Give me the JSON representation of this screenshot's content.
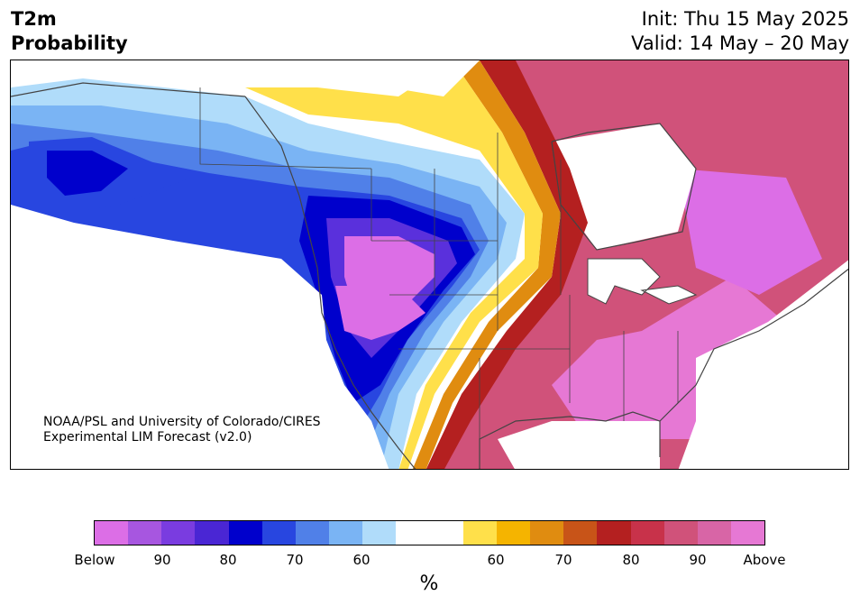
{
  "header": {
    "title_line1": "T2m",
    "title_line2": "Probability",
    "init": "Init: Thu 15 May 2025",
    "valid": "Valid: 14 May – 20 May"
  },
  "credit": {
    "line1": "NOAA/PSL and University of Colorado/CIRES",
    "line2": "Experimental LIM Forecast (v2.0)"
  },
  "colorbar": {
    "colors": [
      "#dc6ee6",
      "#a756e0",
      "#7a3ce0",
      "#4a26d4",
      "#0000cc",
      "#2846e0",
      "#5080e8",
      "#7ab4f4",
      "#b0dcfa",
      "#ffffff",
      "#ffffff",
      "#ffe04a",
      "#f5b400",
      "#e08c10",
      "#c85418",
      "#b42020",
      "#c8324a",
      "#d0527a",
      "#d865a6",
      "#e678d4"
    ],
    "tick_labels": [
      "Below",
      "90",
      "80",
      "70",
      "60",
      "60",
      "70",
      "80",
      "90",
      "Above"
    ],
    "unit_label": "%"
  },
  "map": {
    "region": "North America",
    "cold_side_colors": [
      "#dc6ee6",
      "#9b5ee6",
      "#5a30dc",
      "#1a0ad0",
      "#2846e0",
      "#5080e8",
      "#7ab4f4",
      "#b0dcfa"
    ],
    "warm_side_colors": [
      "#ffe04a",
      "#f5b400",
      "#e08c10",
      "#c85418",
      "#b42020",
      "#c8324a",
      "#d0527a",
      "#e678d4"
    ]
  }
}
